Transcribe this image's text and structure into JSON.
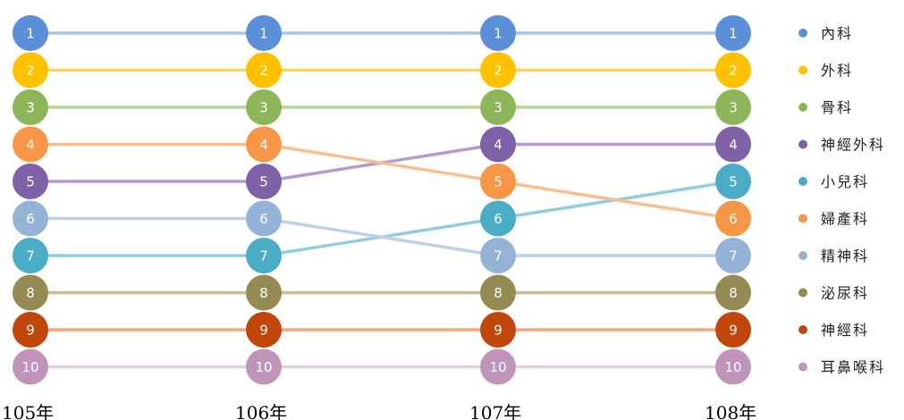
{
  "chart_data": {
    "type": "line",
    "subtype": "bump",
    "categories": [
      "105年",
      "106年",
      "107年",
      "108年"
    ],
    "rank_labels": [
      "1",
      "2",
      "3",
      "4",
      "5",
      "6",
      "7",
      "8",
      "9",
      "10"
    ],
    "legend_position": "right",
    "series": [
      {
        "name": "內科",
        "color": "#5B8FD9",
        "line_color": "#A9C3EC",
        "ranks": [
          1,
          1,
          1,
          1
        ]
      },
      {
        "name": "外科",
        "color": "#FFC000",
        "line_color": "#FFD54F",
        "ranks": [
          2,
          2,
          2,
          2
        ]
      },
      {
        "name": "骨科",
        "color": "#8DB55A",
        "line_color": "#B9D48F",
        "ranks": [
          3,
          3,
          3,
          3
        ]
      },
      {
        "name": "神經外科",
        "color": "#7E61A6",
        "line_color": "#B19CCB",
        "ranks": [
          5,
          5,
          4,
          4
        ]
      },
      {
        "name": "小兒科",
        "color": "#4BACC6",
        "line_color": "#93CDDD",
        "ranks": [
          7,
          7,
          6,
          5
        ]
      },
      {
        "name": "婦產科",
        "color": "#F79646",
        "line_color": "#F7BE8E",
        "ranks": [
          4,
          4,
          5,
          6
        ]
      },
      {
        "name": "精神科",
        "color": "#95B3D7",
        "line_color": "#BFD0E6",
        "ranks": [
          6,
          6,
          7,
          7
        ]
      },
      {
        "name": "泌尿科",
        "color": "#948A54",
        "line_color": "#C4BD97",
        "ranks": [
          8,
          8,
          8,
          8
        ]
      },
      {
        "name": "神經科",
        "color": "#C0460B",
        "line_color": "#F4A582",
        "ranks": [
          9,
          9,
          9,
          9
        ]
      },
      {
        "name": "耳鼻喉科",
        "color": "#C094B8",
        "line_color": "#E6D0E0",
        "ranks": [
          10,
          10,
          10,
          10
        ]
      }
    ]
  }
}
